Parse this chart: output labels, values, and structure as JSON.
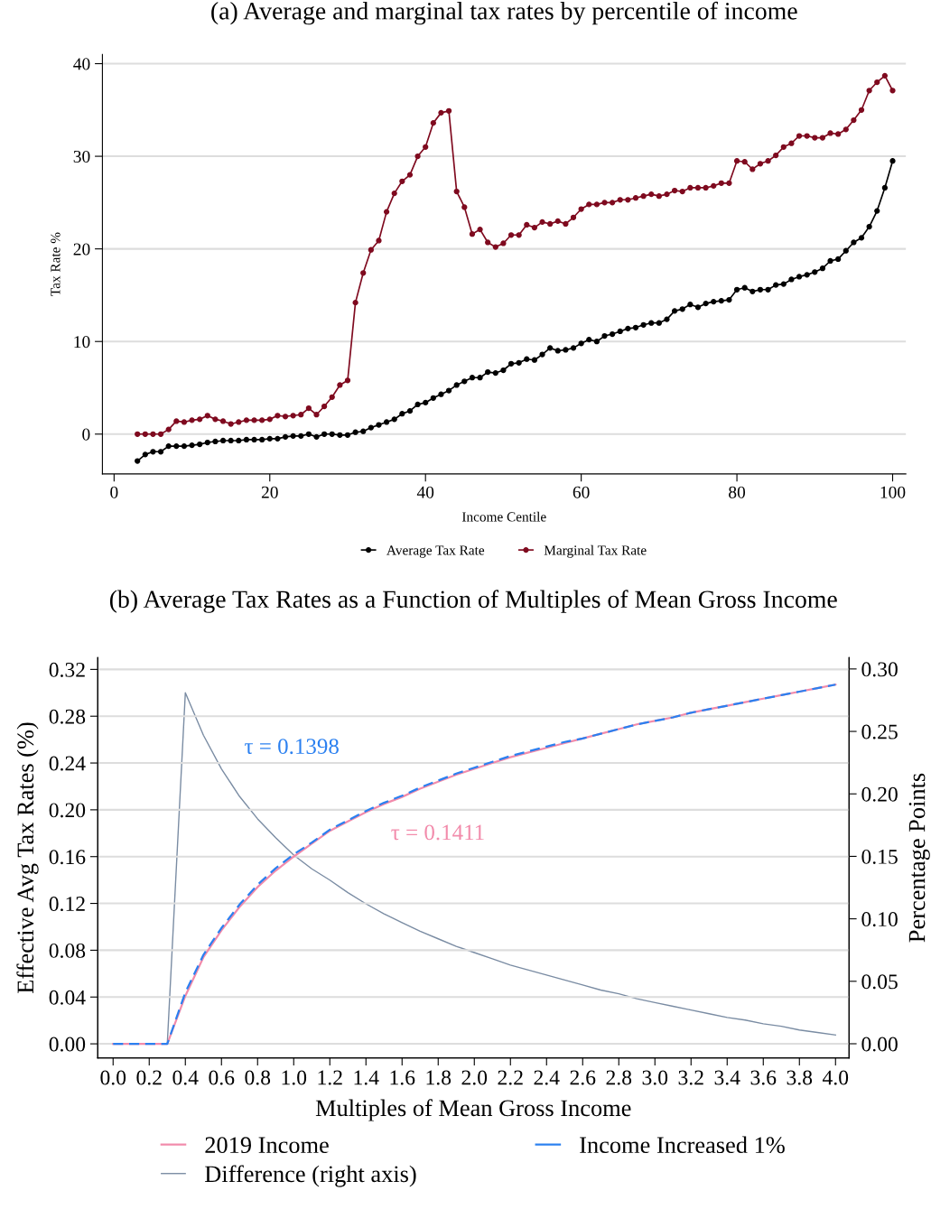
{
  "chart_data": [
    {
      "type": "line",
      "title": "(a) Average and marginal tax rates by percentile of income",
      "xlabel": "Income Centile",
      "ylabel": "Tax Rate %",
      "xlim": [
        -1.5,
        101.7
      ],
      "ylim": [
        -4.3,
        41
      ],
      "xticks": [
        0,
        20,
        40,
        60,
        80,
        100
      ],
      "yticks": [
        0,
        10,
        20,
        30,
        40
      ],
      "grid": "y",
      "legend": "bottom",
      "marker": "circle",
      "line_style": "solid",
      "x": [
        3,
        4,
        5,
        6,
        7,
        8,
        9,
        10,
        11,
        12,
        13,
        14,
        15,
        16,
        17,
        18,
        19,
        20,
        21,
        22,
        23,
        24,
        25,
        26,
        27,
        28,
        29,
        30,
        31,
        32,
        33,
        34,
        35,
        36,
        37,
        38,
        39,
        40,
        41,
        42,
        43,
        44,
        45,
        46,
        47,
        48,
        49,
        50,
        51,
        52,
        53,
        54,
        55,
        56,
        57,
        58,
        59,
        60,
        61,
        62,
        63,
        64,
        65,
        66,
        67,
        68,
        69,
        70,
        71,
        72,
        73,
        74,
        75,
        76,
        77,
        78,
        79,
        80,
        81,
        82,
        83,
        84,
        85,
        86,
        87,
        88,
        89,
        90,
        91,
        92,
        93,
        94,
        95,
        96,
        97,
        98,
        99,
        100
      ],
      "series": [
        {
          "name": "Average Tax Rate",
          "color": "#000000",
          "values": [
            -2.9,
            -2.2,
            -1.9,
            -1.9,
            -1.3,
            -1.3,
            -1.3,
            -1.2,
            -1.1,
            -0.9,
            -0.8,
            -0.7,
            -0.7,
            -0.7,
            -0.6,
            -0.6,
            -0.6,
            -0.5,
            -0.5,
            -0.3,
            -0.2,
            -0.2,
            0,
            -0.3,
            0,
            0,
            -0.1,
            -0.1,
            0.2,
            0.3,
            0.7,
            1.0,
            1.3,
            1.6,
            2.2,
            2.5,
            3.2,
            3.4,
            3.9,
            4.3,
            4.7,
            5.3,
            5.7,
            6.1,
            6.1,
            6.7,
            6.6,
            6.9,
            7.6,
            7.7,
            8.1,
            8.0,
            8.6,
            9.3,
            9.0,
            9.1,
            9.3,
            9.8,
            10.2,
            10.0,
            10.6,
            10.8,
            11.1,
            11.4,
            11.5,
            11.8,
            12.0,
            12.0,
            12.4,
            13.3,
            13.5,
            14.0,
            13.7,
            14.1,
            14.3,
            14.4,
            14.5,
            15.6,
            15.8,
            15.4,
            15.6,
            15.6,
            16.1,
            16.2,
            16.7,
            17.0,
            17.2,
            17.5,
            17.9,
            18.7,
            18.9,
            19.8,
            20.7,
            21.2,
            22.4,
            24.1,
            26.6,
            29.5
          ]
        },
        {
          "name": "Marginal Tax Rate",
          "color": "#7f0a1f",
          "values": [
            0,
            0,
            0,
            0,
            0.5,
            1.4,
            1.3,
            1.5,
            1.6,
            2.0,
            1.6,
            1.4,
            1.1,
            1.3,
            1.5,
            1.5,
            1.5,
            1.6,
            2.0,
            1.9,
            2.0,
            2.1,
            2.8,
            2.1,
            3.0,
            4.0,
            5.3,
            5.8,
            14.2,
            17.4,
            19.9,
            20.9,
            24.0,
            26.0,
            27.3,
            28.0,
            30.0,
            31.0,
            33.6,
            34.7,
            34.9,
            26.2,
            24.5,
            21.6,
            22.1,
            20.7,
            20.2,
            20.6,
            21.5,
            21.5,
            22.6,
            22.3,
            22.9,
            22.7,
            23.0,
            22.7,
            23.4,
            24.3,
            24.8,
            24.8,
            25.0,
            25.0,
            25.3,
            25.3,
            25.5,
            25.7,
            25.9,
            25.7,
            25.9,
            26.3,
            26.2,
            26.6,
            26.6,
            26.6,
            26.8,
            27.1,
            27.1,
            29.5,
            29.4,
            28.6,
            29.2,
            29.5,
            30.1,
            31.0,
            31.4,
            32.2,
            32.2,
            32.0,
            32.0,
            32.5,
            32.4,
            32.9,
            33.9,
            35.0,
            37.1,
            38.0,
            38.7,
            37.1
          ]
        }
      ]
    },
    {
      "type": "line",
      "title": "(b) Average Tax Rates as a Function of Multiples of Mean Gross Income",
      "xlabel": "Multiples of Mean Gross Income",
      "ylabel": "Effective Avg Tax Rates (%)",
      "y2label": "Percentage Points",
      "xlim": [
        -0.085,
        4.075
      ],
      "ylim": [
        -0.012,
        0.33
      ],
      "y2lim": [
        -0.0113,
        0.309
      ],
      "xticks": [
        {
          "value": 0,
          "label": "0.0"
        },
        {
          "value": 0.2,
          "label": "0.2"
        },
        {
          "value": 0.4,
          "label": "0.4"
        },
        {
          "value": 0.6,
          "label": "0.6"
        },
        {
          "value": 0.8,
          "label": "0.8"
        },
        {
          "value": 1,
          "label": "1.0"
        },
        {
          "value": 1.2,
          "label": "1.2"
        },
        {
          "value": 1.4,
          "label": "1.4"
        },
        {
          "value": 1.6,
          "label": "1.6"
        },
        {
          "value": 1.8,
          "label": "1.8"
        },
        {
          "value": 2,
          "label": "2.0"
        },
        {
          "value": 2.2,
          "label": "2.2"
        },
        {
          "value": 2.4,
          "label": "2.4"
        },
        {
          "value": 2.6,
          "label": "2.6"
        },
        {
          "value": 2.8,
          "label": "2.8"
        },
        {
          "value": 3,
          "label": "3.0"
        },
        {
          "value": 3.2,
          "label": "3.2"
        },
        {
          "value": 3.4,
          "label": "3.4"
        },
        {
          "value": 3.6,
          "label": "3.6"
        },
        {
          "value": 3.8,
          "label": "3.8"
        },
        {
          "value": 4,
          "label": "4.0"
        }
      ],
      "yticks": [
        {
          "value": 0,
          "label": "0.00"
        },
        {
          "value": 0.04,
          "label": "0.04"
        },
        {
          "value": 0.08,
          "label": "0.08"
        },
        {
          "value": 0.12,
          "label": "0.12"
        },
        {
          "value": 0.16,
          "label": "0.16"
        },
        {
          "value": 0.2,
          "label": "0.20"
        },
        {
          "value": 0.24,
          "label": "0.24"
        },
        {
          "value": 0.28,
          "label": "0.28"
        },
        {
          "value": 0.32,
          "label": "0.32"
        }
      ],
      "y2ticks": [
        {
          "value": 0,
          "label": "0.00"
        },
        {
          "value": 0.05,
          "label": "0.05"
        },
        {
          "value": 0.1,
          "label": "0.10"
        },
        {
          "value": 0.15,
          "label": "0.15"
        },
        {
          "value": 0.2,
          "label": "0.20"
        },
        {
          "value": 0.25,
          "label": "0.25"
        },
        {
          "value": 0.3,
          "label": "0.30"
        }
      ],
      "grid": "y",
      "legend": "bottom",
      "x": [
        0,
        0.1,
        0.2,
        0.3,
        0.4,
        0.5,
        0.6,
        0.7,
        0.8,
        0.9,
        1.0,
        1.1,
        1.2,
        1.3,
        1.4,
        1.5,
        1.6,
        1.7,
        1.8,
        1.9,
        2.0,
        2.1,
        2.2,
        2.3,
        2.4,
        2.5,
        2.6,
        2.7,
        2.8,
        2.9,
        3.0,
        3.1,
        3.2,
        3.3,
        3.4,
        3.5,
        3.6,
        3.7,
        3.8,
        3.9,
        4.0
      ],
      "series": [
        {
          "name": "2019 Income",
          "color": "#f28bab",
          "line_style": "solid",
          "values": [
            0,
            0,
            0,
            0,
            0.041,
            0.074,
            0.097,
            0.117,
            0.134,
            0.148,
            0.16,
            0.171,
            0.182,
            0.19,
            0.198,
            0.205,
            0.211,
            0.218,
            0.224,
            0.23,
            0.235,
            0.24,
            0.245,
            0.249,
            0.253,
            0.257,
            0.261,
            0.265,
            0.269,
            0.273,
            0.276,
            0.279,
            0.283,
            0.286,
            0.289,
            0.292,
            0.295,
            0.298,
            0.301,
            0.304,
            0.307
          ]
        },
        {
          "name": "Income Increased 1%",
          "color": "#2b80f0",
          "line_style": "dashed",
          "values": [
            0,
            0,
            0,
            0,
            0.044,
            0.076,
            0.099,
            0.119,
            0.136,
            0.15,
            0.162,
            0.172,
            0.183,
            0.191,
            0.199,
            0.206,
            0.212,
            0.219,
            0.225,
            0.231,
            0.236,
            0.241,
            0.246,
            0.25,
            0.254,
            0.258,
            0.261,
            0.265,
            0.269,
            0.273,
            0.276,
            0.279,
            0.283,
            0.286,
            0.289,
            0.292,
            0.295,
            0.298,
            0.301,
            0.304,
            0.307
          ]
        },
        {
          "name": "Difference (right axis)",
          "color": "#7a8ca3",
          "line_style": "solid",
          "axis": "y2",
          "values": [
            null,
            null,
            0,
            0,
            0.281,
            0.247,
            0.22,
            0.198,
            0.18,
            0.165,
            0.151,
            0.14,
            0.131,
            0.121,
            0.112,
            0.104,
            0.097,
            0.09,
            0.084,
            0.078,
            0.073,
            0.068,
            0.063,
            0.059,
            0.055,
            0.051,
            0.047,
            0.043,
            0.04,
            0.036,
            0.033,
            0.03,
            0.027,
            0.024,
            0.021,
            0.019,
            0.016,
            0.014,
            0.011,
            0.009,
            0.007
          ]
        }
      ],
      "annotations": [
        "τ = 0.1398",
        "τ = 0.1411"
      ]
    }
  ]
}
